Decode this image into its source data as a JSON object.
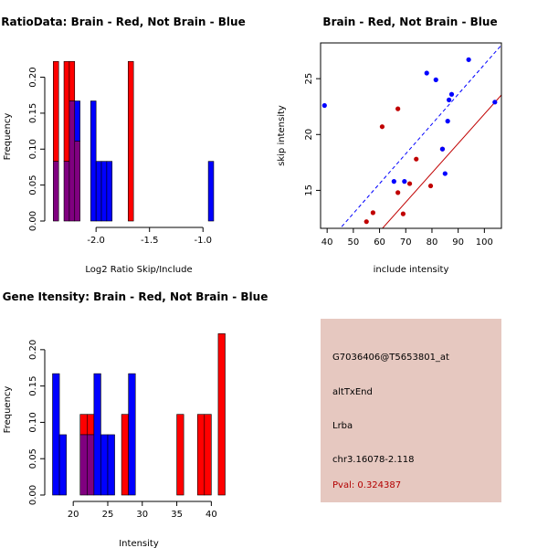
{
  "colors": {
    "red": "#ff0000",
    "blue": "#0000ff",
    "overlap": "#800080",
    "dark_red": "#c00000",
    "info_bg": "#e6c8c0",
    "pval": "#b30000"
  },
  "chart_data": [
    {
      "id": "ratio_hist",
      "type": "bar",
      "title": "RatioData: Brain - Red, Not Brain - Blue",
      "xlabel": "Log2 Ratio Skip/Include",
      "ylabel": "Frequency",
      "xlim": [
        -2.42,
        -0.78
      ],
      "ylim": [
        0,
        0.235
      ],
      "xticks": [
        -2.0,
        -1.5,
        -1.0
      ],
      "xtick_labels": [
        "-2.0",
        "-1.5",
        "-1.0"
      ],
      "yticks": [
        0.0,
        0.05,
        0.1,
        0.15,
        0.2
      ],
      "ytick_labels": [
        "0.00",
        "0.05",
        "0.10",
        "0.15",
        "0.20"
      ],
      "bin_edges": [
        -2.4,
        -2.35,
        -2.3,
        -2.25,
        -2.2,
        -2.15,
        -2.1,
        -2.05,
        -2.0,
        -1.95,
        -1.9,
        -1.85,
        -1.8,
        -1.75,
        -1.7,
        -1.65,
        -1.6,
        -1.55,
        -1.5,
        -1.45,
        -1.4,
        -1.35,
        -1.3,
        -1.25,
        -1.2,
        -1.15,
        -1.1,
        -1.05,
        -1.0,
        -0.95,
        -0.9,
        -0.85,
        -0.8
      ],
      "series": [
        {
          "name": "Brain",
          "color": "red",
          "values": [
            0.222,
            0,
            0.222,
            0.222,
            0.111,
            0,
            0,
            0,
            0,
            0,
            0,
            0,
            0,
            0,
            0.222,
            0,
            0,
            0,
            0,
            0,
            0,
            0,
            0,
            0,
            0,
            0,
            0,
            0,
            0,
            0,
            0,
            0
          ]
        },
        {
          "name": "Not Brain",
          "color": "blue",
          "values": [
            0.083,
            0,
            0.083,
            0.167,
            0.167,
            0,
            0,
            0.167,
            0.083,
            0.083,
            0.083,
            0,
            0,
            0,
            0,
            0,
            0,
            0,
            0,
            0,
            0,
            0,
            0,
            0,
            0,
            0,
            0,
            0,
            0,
            0.083,
            0,
            0
          ]
        }
      ]
    },
    {
      "id": "scatter",
      "type": "scatter",
      "title": "Brain - Red, Not Brain - Blue",
      "xlabel": "include intensity",
      "ylabel": "skip intensity",
      "xlim": [
        37.5,
        106.5
      ],
      "ylim": [
        11.6,
        28.2
      ],
      "xticks": [
        40,
        50,
        60,
        70,
        80,
        90,
        100
      ],
      "xtick_labels": [
        "40",
        "50",
        "60",
        "70",
        "80",
        "90",
        "100"
      ],
      "yticks": [
        15,
        20,
        25
      ],
      "ytick_labels": [
        "15",
        "20",
        "25"
      ],
      "series": [
        {
          "name": "Brain",
          "color": "dark_red",
          "x": [
            55.0,
            57.5,
            61.0,
            67.0,
            67.0,
            69.0,
            71.5,
            74.0,
            79.5,
            84.0
          ],
          "y": [
            12.2,
            13.0,
            20.7,
            14.8,
            22.3,
            12.9,
            15.6,
            17.8,
            15.4,
            18.7
          ],
          "fit": {
            "intercept": -4.47,
            "slope": 0.263
          }
        },
        {
          "name": "Not Brain",
          "color": "blue",
          "x": [
            39.0,
            65.5,
            69.5,
            78.0,
            81.5,
            84.0,
            85.0,
            86.0,
            86.5,
            87.5,
            94.0,
            104.0
          ],
          "y": [
            22.6,
            15.8,
            15.8,
            25.5,
            24.9,
            18.7,
            16.5,
            21.2,
            23.1,
            23.6,
            26.7,
            22.9
          ],
          "fit": {
            "intercept": -0.4,
            "slope": 0.2667
          }
        }
      ]
    },
    {
      "id": "intensity_hist",
      "type": "bar",
      "title": "Gene Itensity: Brain - Red, Not Brain - Blue",
      "xlabel": "Intensity",
      "ylabel": "Frequency",
      "xlim": [
        16.8,
        42.2
      ],
      "ylim": [
        0,
        0.235
      ],
      "xticks": [
        20,
        25,
        30,
        35,
        40
      ],
      "xtick_labels": [
        "20",
        "25",
        "30",
        "35",
        "40"
      ],
      "yticks": [
        0.0,
        0.05,
        0.1,
        0.15,
        0.2
      ],
      "ytick_labels": [
        "0.00",
        "0.05",
        "0.10",
        "0.15",
        "0.20"
      ],
      "bin_edges": [
        17,
        18,
        19,
        20,
        21,
        22,
        23,
        24,
        25,
        26,
        27,
        28,
        29,
        30,
        31,
        32,
        33,
        34,
        35,
        36,
        37,
        38,
        39,
        40,
        41,
        42
      ],
      "series": [
        {
          "name": "Brain",
          "color": "red",
          "values": [
            0,
            0,
            0,
            0,
            0.111,
            0.111,
            0,
            0,
            0,
            0,
            0.111,
            0,
            0,
            0,
            0,
            0,
            0,
            0,
            0.111,
            0,
            0,
            0.111,
            0.111,
            0,
            0.222
          ]
        },
        {
          "name": "Not Brain",
          "color": "blue",
          "values": [
            0.167,
            0.083,
            0,
            0,
            0.083,
            0.083,
            0.167,
            0.083,
            0.083,
            0,
            0,
            0.167,
            0,
            0,
            0,
            0,
            0,
            0,
            0,
            0,
            0,
            0,
            0,
            0,
            0
          ]
        }
      ]
    }
  ],
  "info": {
    "probe_id": "G7036406@T5653801_at",
    "event_type": "altTxEnd",
    "gene": "Lrba",
    "location": "chr3.16078-2.118",
    "pval": "Pval: 0.324387"
  }
}
